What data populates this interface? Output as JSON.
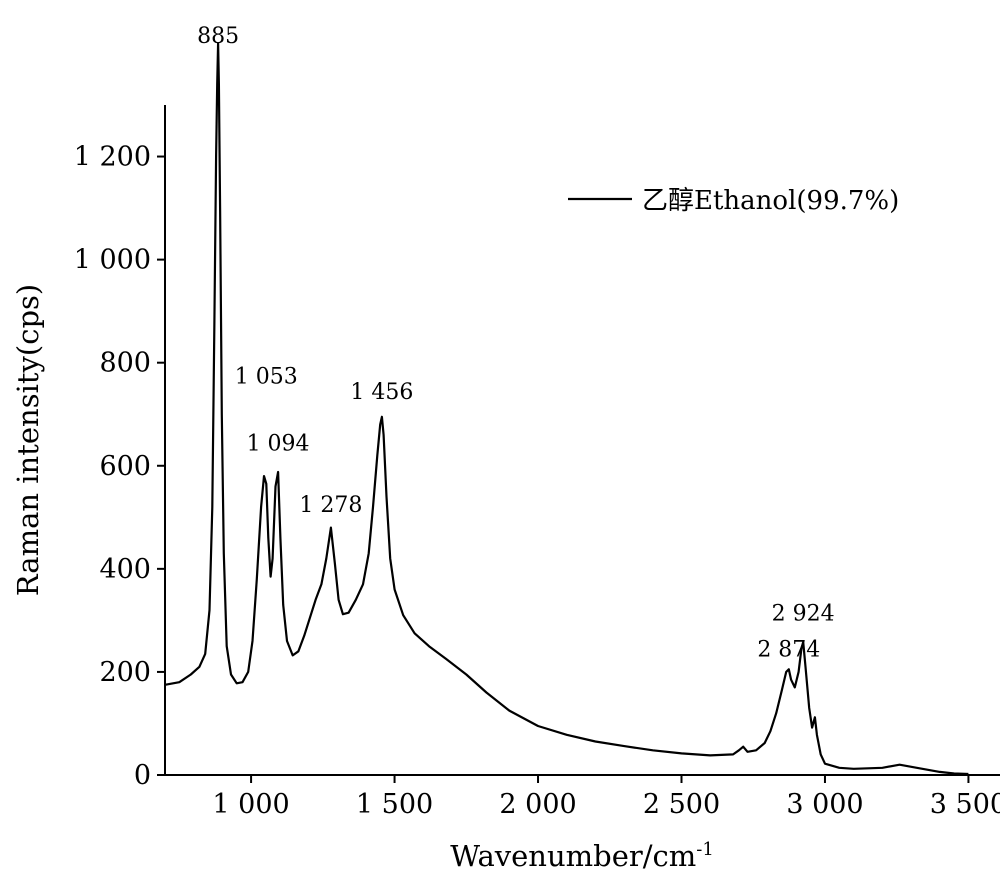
{
  "chart_data": {
    "type": "line",
    "xlabel": "Wavenumber/cm",
    "xlabel_superscript": "-1",
    "ylabel": "Raman intensity(cps)",
    "xlim": [
      700,
      3610
    ],
    "ylim": [
      0,
      1300
    ],
    "xticks": [
      1000,
      1500,
      2000,
      2500,
      3000,
      3500
    ],
    "xtick_labels": [
      "1 000",
      "1 500",
      "2 000",
      "2 500",
      "3 000",
      "3 500"
    ],
    "yticks": [
      0,
      200,
      400,
      600,
      800,
      1000,
      1200
    ],
    "ytick_labels": [
      "0",
      "200",
      "400",
      "600",
      "800",
      "1 000",
      "1 200"
    ],
    "grid": false,
    "legend": {
      "position": "top-right",
      "entries": [
        "乙醇Ethanol(99.7%)"
      ]
    },
    "annotations": [
      {
        "text": "885",
        "x": 885,
        "y": 1420
      },
      {
        "text": "1 053",
        "x": 1053,
        "y": 760
      },
      {
        "text": "1 094",
        "x": 1094,
        "y": 630
      },
      {
        "text": "1 278",
        "x": 1278,
        "y": 510
      },
      {
        "text": "1 456",
        "x": 1456,
        "y": 730
      },
      {
        "text": "2 874",
        "x": 2874,
        "y": 230
      },
      {
        "text": "2 924",
        "x": 2924,
        "y": 300
      }
    ],
    "series": [
      {
        "name": "乙醇Ethanol(99.7%)",
        "x": [
          700,
          750,
          790,
          820,
          840,
          855,
          865,
          872,
          878,
          882,
          885,
          888,
          892,
          898,
          905,
          915,
          930,
          950,
          970,
          990,
          1005,
          1020,
          1035,
          1045,
          1053,
          1060,
          1068,
          1075,
          1085,
          1094,
          1102,
          1112,
          1125,
          1145,
          1165,
          1185,
          1205,
          1225,
          1245,
          1262,
          1278,
          1292,
          1305,
          1320,
          1340,
          1365,
          1390,
          1410,
          1425,
          1440,
          1450,
          1456,
          1462,
          1472,
          1485,
          1500,
          1530,
          1570,
          1620,
          1680,
          1750,
          1820,
          1900,
          2000,
          2100,
          2200,
          2300,
          2400,
          2500,
          2600,
          2680,
          2700,
          2715,
          2730,
          2760,
          2790,
          2810,
          2830,
          2850,
          2865,
          2874,
          2882,
          2895,
          2908,
          2918,
          2924,
          2932,
          2945,
          2955,
          2965,
          2972,
          2985,
          3000,
          3050,
          3100,
          3200,
          3260,
          3320,
          3400,
          3450,
          3500
        ],
        "values": [
          175,
          180,
          195,
          210,
          235,
          320,
          520,
          880,
          1200,
          1340,
          1420,
          1340,
          1100,
          700,
          430,
          250,
          195,
          178,
          180,
          200,
          260,
          380,
          520,
          580,
          565,
          460,
          385,
          420,
          560,
          588,
          460,
          330,
          260,
          232,
          240,
          270,
          305,
          340,
          370,
          420,
          480,
          410,
          340,
          312,
          315,
          340,
          370,
          430,
          520,
          620,
          680,
          695,
          660,
          540,
          420,
          360,
          310,
          275,
          250,
          225,
          195,
          160,
          125,
          95,
          78,
          65,
          56,
          48,
          42,
          38,
          40,
          48,
          55,
          45,
          48,
          62,
          85,
          120,
          165,
          200,
          205,
          185,
          170,
          200,
          245,
          258,
          210,
          130,
          92,
          112,
          78,
          40,
          22,
          14,
          12,
          14,
          20,
          14,
          6,
          3,
          2
        ]
      }
    ]
  }
}
